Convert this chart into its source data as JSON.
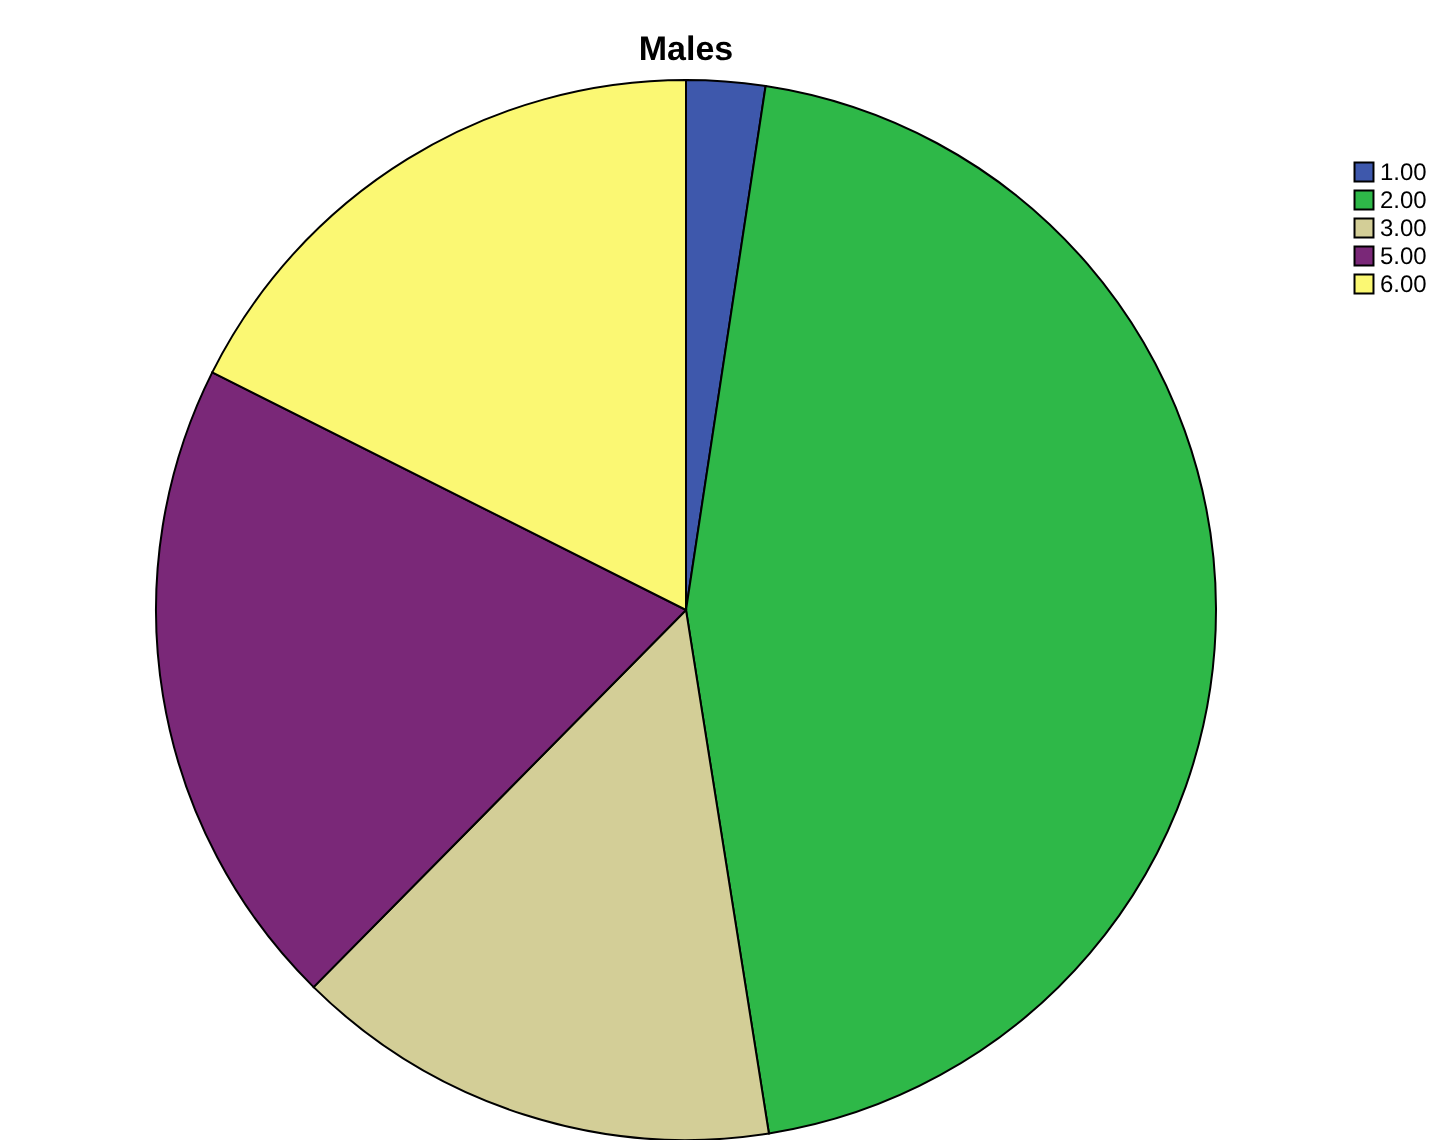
{
  "chart_data": {
    "type": "pie",
    "title": "Males",
    "categories": [
      "1.00",
      "2.00",
      "3.00",
      "5.00",
      "6.00"
    ],
    "values": [
      2.4,
      45.1,
      14.9,
      20.0,
      17.6
    ],
    "colors": [
      "#3e58ac",
      "#2eb848",
      "#d3ce97",
      "#7a2878",
      "#fbf873"
    ],
    "legend": "top right"
  }
}
